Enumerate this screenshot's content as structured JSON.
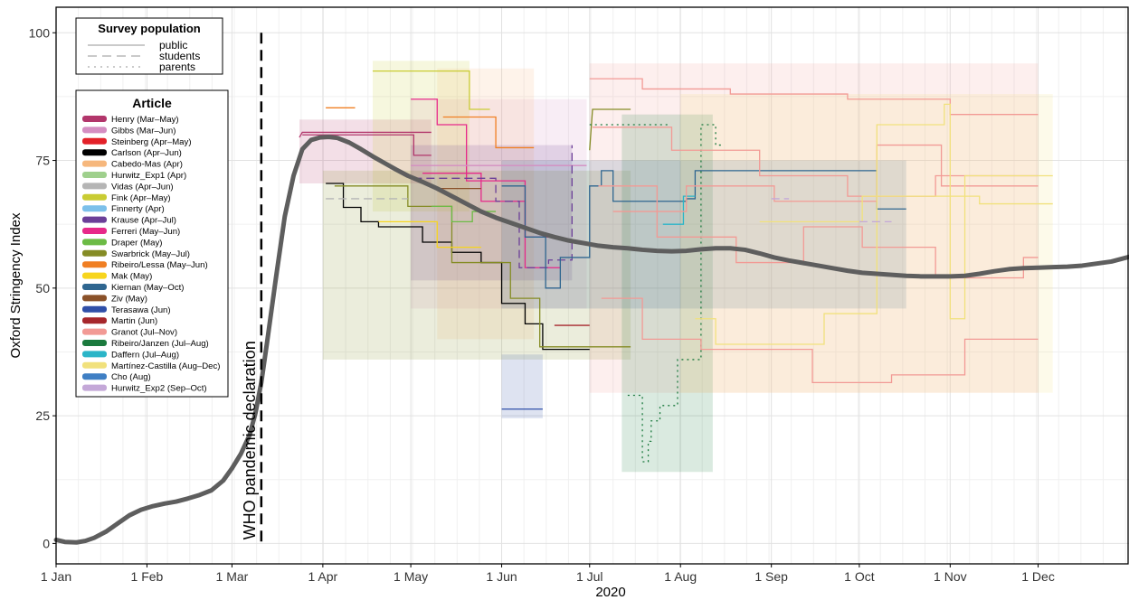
{
  "chart_data": {
    "type": "line",
    "ylabel": "Oxford Stringency Index",
    "xlabel": "2020",
    "ylim": [
      -4,
      105
    ],
    "xlim_days": [
      0,
      366
    ],
    "y_ticks": [
      0,
      25,
      50,
      75,
      100
    ],
    "x_ticks": [
      {
        "day": 0,
        "label": "1 Jan"
      },
      {
        "day": 31,
        "label": "1 Feb"
      },
      {
        "day": 60,
        "label": "1 Mar"
      },
      {
        "day": 91,
        "label": "1 Apr"
      },
      {
        "day": 121,
        "label": "1 May"
      },
      {
        "day": 152,
        "label": "1 Jun"
      },
      {
        "day": 182,
        "label": "1 Jul"
      },
      {
        "day": 213,
        "label": "1 Aug"
      },
      {
        "day": 244,
        "label": "1 Sep"
      },
      {
        "day": 274,
        "label": "1 Oct"
      },
      {
        "day": 305,
        "label": "1 Nov"
      },
      {
        "day": 335,
        "label": "1 Dec"
      }
    ],
    "grid": true,
    "annotation": {
      "text": "WHO pandemic declaration",
      "day": 70
    },
    "survey_legend": {
      "title": "Survey population",
      "items": [
        {
          "label": "public",
          "dash": "solid"
        },
        {
          "label": "students",
          "dash": "dashed"
        },
        {
          "label": "parents",
          "dash": "dotted"
        }
      ]
    },
    "article_legend": {
      "title": "Article",
      "items": [
        {
          "label": "Henry (Mar–May)",
          "color": "#b2366b"
        },
        {
          "label": "Gibbs (Mar–Jun)",
          "color": "#d58ec2"
        },
        {
          "label": "Steinberg (Apr–May)",
          "color": "#e32129"
        },
        {
          "label": "Carlson (Apr–Jun)",
          "color": "#000000"
        },
        {
          "label": "Cabedo-Mas (Apr)",
          "color": "#f6b77c"
        },
        {
          "label": "Hurwitz_Exp1 (Apr)",
          "color": "#9fd08d"
        },
        {
          "label": "Vidas (Apr–Jun)",
          "color": "#b5b5b5"
        },
        {
          "label": "Fink (Apr–May)",
          "color": "#c9cc33"
        },
        {
          "label": "Finnerty (Apr)",
          "color": "#7cc0ea"
        },
        {
          "label": "Krause (Apr–Jul)",
          "color": "#6b3f98"
        },
        {
          "label": "Ferreri (May–Jun)",
          "color": "#e7298a"
        },
        {
          "label": "Draper (May)",
          "color": "#6cbb45"
        },
        {
          "label": "Swarbrick (May–Jul)",
          "color": "#858c25"
        },
        {
          "label": "Ribeiro/Lessa (May–Jun)",
          "color": "#f07f23"
        },
        {
          "label": "Mak (May)",
          "color": "#f7d51d"
        },
        {
          "label": "Kiernan (May–Oct)",
          "color": "#2f6690"
        },
        {
          "label": "Ziv (May)",
          "color": "#8a5129"
        },
        {
          "label": "Terasawa (Jun)",
          "color": "#2f4fa8"
        },
        {
          "label": "Martin (Jun)",
          "color": "#a6272c"
        },
        {
          "label": "Granot (Jul–Nov)",
          "color": "#f29a95"
        },
        {
          "label": "Ribeiro/Janzen (Jul–Aug)",
          "color": "#1b7a3e"
        },
        {
          "label": "Daffern (Jul–Aug)",
          "color": "#2bb5c8"
        },
        {
          "label": "Martínez-Castilla (Aug–Dec)",
          "color": "#f1e17c"
        },
        {
          "label": "Cho (Aug)",
          "color": "#3f7fc4"
        },
        {
          "label": "Hurwitz_Exp2 (Sep–Oct)",
          "color": "#c4a8d8"
        }
      ]
    },
    "series": [
      {
        "name": "Oxford Stringency Index",
        "color": "#5e5e5e",
        "x": [
          0,
          3,
          7,
          10,
          13,
          17,
          21,
          25,
          29,
          33,
          37,
          41,
          45,
          49,
          53,
          57,
          60,
          63,
          66,
          68,
          70,
          72,
          75,
          78,
          81,
          84,
          87,
          90,
          93,
          96,
          100,
          104,
          108,
          112,
          116,
          120,
          125,
          130,
          135,
          140,
          145,
          150,
          155,
          160,
          165,
          170,
          175,
          180,
          185,
          190,
          195,
          200,
          205,
          210,
          215,
          220,
          225,
          230,
          235,
          240,
          245,
          250,
          255,
          260,
          265,
          270,
          275,
          280,
          285,
          290,
          295,
          300,
          305,
          310,
          315,
          320,
          325,
          330,
          335,
          340,
          345,
          350,
          355,
          360,
          366
        ],
        "y": [
          0.7,
          0.3,
          0.2,
          0.5,
          1.1,
          2.3,
          3.9,
          5.5,
          6.6,
          7.3,
          7.8,
          8.2,
          8.8,
          9.5,
          10.4,
          12.3,
          14.7,
          17.5,
          21.2,
          25.5,
          31.5,
          39.5,
          52,
          64,
          72,
          77.2,
          79,
          79.5,
          79.6,
          79.4,
          78.5,
          77.2,
          75.8,
          74.5,
          73.2,
          72,
          70.8,
          69.5,
          68,
          66.5,
          65,
          63.8,
          62.8,
          61.8,
          60.8,
          60,
          59.3,
          58.8,
          58.3,
          58,
          57.8,
          57.5,
          57.3,
          57.2,
          57.3,
          57.6,
          57.8,
          57.8,
          57.5,
          56.8,
          56,
          55.4,
          54.9,
          54.4,
          53.9,
          53.4,
          53,
          52.8,
          52.6,
          52.4,
          52.3,
          52.3,
          52.3,
          52.4,
          52.8,
          53.3,
          53.7,
          53.9,
          54.0,
          54.1,
          54.2,
          54.4,
          54.8,
          55.2,
          56.1
        ]
      }
    ],
    "article_ranges": [
      {
        "color": "#b2366b",
        "x0": 83,
        "x1": 128,
        "y0": 70.5,
        "y1": 83
      },
      {
        "color": "#d58ec2",
        "x0": 121,
        "x1": 181,
        "y0": 46,
        "y1": 87
      },
      {
        "color": "#f6b77c",
        "x0": 130,
        "x1": 163,
        "y0": 40,
        "y1": 93
      },
      {
        "color": "#c9cc33",
        "x0": 108,
        "x1": 141,
        "y0": 65,
        "y1": 94.5
      },
      {
        "color": "#6b3f98",
        "x0": 121,
        "x1": 176,
        "y0": 51.5,
        "y1": 78
      },
      {
        "color": "#858c25",
        "x0": 91,
        "x1": 196,
        "y0": 36,
        "y1": 73
      },
      {
        "color": "#2f4fa8",
        "x0": 152,
        "x1": 166,
        "y0": 24.5,
        "y1": 37
      },
      {
        "color": "#f29a95",
        "x0": 182,
        "x1": 335,
        "y0": 29.5,
        "y1": 94
      },
      {
        "color": "#1b7a3e",
        "x0": 193,
        "x1": 224,
        "y0": 14,
        "y1": 84
      },
      {
        "color": "#2f6690",
        "x0": 152,
        "x1": 290,
        "y0": 46,
        "y1": 75
      },
      {
        "color": "#f1e17c",
        "x0": 213,
        "x1": 340,
        "y0": 29.5,
        "y1": 88
      }
    ],
    "article_lines": [
      {
        "color": "#b2366b",
        "dash": "solid",
        "x": [
          83,
          84,
          128
        ],
        "y": [
          79.5,
          80.5,
          80.5
        ]
      },
      {
        "color": "#b2366b",
        "dash": "solid",
        "x": [
          84,
          122,
          122,
          128
        ],
        "y": [
          80,
          80,
          76,
          76
        ]
      },
      {
        "color": "#000000",
        "dash": "solid",
        "x": [
          92,
          98,
          98,
          104,
          104,
          110,
          110,
          125,
          125,
          135,
          135,
          145,
          145,
          152,
          152,
          160,
          160,
          166,
          166,
          182
        ],
        "y": [
          70.5,
          70.5,
          65.8,
          65.8,
          63,
          63,
          62,
          62,
          59,
          59,
          57,
          57,
          55,
          55,
          47,
          47,
          43,
          43,
          38,
          38
        ]
      },
      {
        "color": "#858c25",
        "dash": "solid",
        "x": [
          95,
          120,
          120,
          135,
          135,
          155,
          155,
          165,
          165,
          182,
          182,
          196
        ],
        "y": [
          70,
          70,
          66,
          66,
          55,
          55,
          48,
          48,
          38.5,
          38.5,
          38.5,
          38.5
        ]
      },
      {
        "color": "#858c25",
        "dash": "solid",
        "x": [
          182,
          183,
          196
        ],
        "y": [
          77,
          85,
          85
        ]
      },
      {
        "color": "#c9cc33",
        "dash": "solid",
        "x": [
          108,
          141,
          141,
          148
        ],
        "y": [
          92.5,
          92.5,
          85,
          85
        ]
      },
      {
        "color": "#f07f23",
        "dash": "solid",
        "x": [
          92,
          102
        ],
        "y": [
          85.3,
          85.3
        ]
      },
      {
        "color": "#f07f23",
        "dash": "solid",
        "x": [
          132,
          150,
          150,
          163
        ],
        "y": [
          83.5,
          83.5,
          77.5,
          77.5
        ]
      },
      {
        "color": "#e7298a",
        "dash": "solid",
        "x": [
          121,
          130,
          130,
          140,
          140,
          160,
          160,
          168
        ],
        "y": [
          87,
          87,
          82,
          82,
          71,
          71,
          60,
          60
        ]
      },
      {
        "color": "#e7298a",
        "dash": "solid",
        "x": [
          125,
          145,
          145,
          160,
          160,
          172
        ],
        "y": [
          72.5,
          72.5,
          67,
          67,
          54,
          54
        ]
      },
      {
        "color": "#d58ec2",
        "dash": "solid",
        "x": [
          121,
          181
        ],
        "y": [
          74,
          74
        ]
      },
      {
        "color": "#6cbb45",
        "dash": "solid",
        "x": [
          128,
          135,
          135,
          142,
          142,
          150
        ],
        "y": [
          66,
          66,
          63,
          63,
          65,
          65
        ]
      },
      {
        "color": "#f7d51d",
        "dash": "solid",
        "x": [
          110,
          130,
          130,
          145
        ],
        "y": [
          63,
          63,
          58,
          58
        ]
      },
      {
        "color": "#6b3f98",
        "dash": "dashed",
        "x": [
          122,
          150,
          150,
          158,
          158,
          168,
          168,
          176,
          176
        ],
        "y": [
          71.5,
          71.5,
          67,
          67,
          54,
          54,
          55.5,
          55.5,
          78
        ]
      },
      {
        "color": "#2f6690",
        "dash": "solid",
        "x": [
          152,
          160,
          160,
          167,
          167,
          172,
          172,
          182,
          182,
          186,
          186,
          190,
          190,
          215,
          215,
          218,
          218,
          230,
          230,
          280,
          280,
          290
        ],
        "y": [
          70,
          70,
          60,
          60,
          50,
          50,
          56,
          56,
          70,
          70,
          73,
          73,
          67,
          67,
          67.5,
          67.5,
          73,
          73,
          73,
          73,
          65.5,
          65.5
        ]
      },
      {
        "color": "#2f4fa8",
        "dash": "solid",
        "x": [
          152,
          166
        ],
        "y": [
          26.3,
          26.3
        ]
      },
      {
        "color": "#a6272c",
        "dash": "solid",
        "x": [
          170,
          182
        ],
        "y": [
          42.7,
          42.7
        ]
      },
      {
        "color": "#2bb5c8",
        "dash": "solid",
        "x": [
          207,
          214,
          214,
          218
        ],
        "y": [
          62.5,
          62.5,
          68,
          68
        ]
      },
      {
        "color": "#1b7a3e",
        "dash": "dotted",
        "x": [
          195,
          200,
          200,
          202,
          202,
          203,
          203,
          206,
          206,
          212,
          212,
          220,
          220,
          225,
          225,
          228
        ],
        "y": [
          29,
          29,
          16,
          16,
          20,
          20,
          24,
          24,
          27,
          27,
          36,
          36,
          82,
          82,
          78,
          78
        ]
      },
      {
        "color": "#1b7a3e",
        "dash": "dotted",
        "x": [
          182,
          206,
          206,
          209
        ],
        "y": [
          82,
          82,
          82,
          82
        ]
      },
      {
        "color": "#f29a95",
        "dash": "solid",
        "x": [
          182,
          200,
          200,
          230,
          230,
          270,
          270,
          305,
          305,
          335
        ],
        "y": [
          91,
          91,
          89,
          89,
          88,
          88,
          87,
          87,
          84,
          84
        ]
      },
      {
        "color": "#f29a95",
        "dash": "solid",
        "x": [
          183,
          210,
          210,
          240,
          240,
          270,
          270,
          300,
          300,
          335
        ],
        "y": [
          81.5,
          81.5,
          77,
          77,
          72,
          72,
          68,
          68,
          72,
          72
        ]
      },
      {
        "color": "#f29a95",
        "dash": "solid",
        "x": [
          185,
          205,
          205,
          232,
          232,
          255,
          255,
          275,
          275,
          300,
          300,
          330,
          330,
          335
        ],
        "y": [
          70,
          70,
          60,
          60,
          55,
          55,
          62,
          62,
          58,
          58,
          52,
          52,
          56,
          56
        ]
      },
      {
        "color": "#f29a95",
        "dash": "solid",
        "x": [
          186,
          200,
          200,
          220,
          220,
          258,
          258,
          285,
          285,
          310,
          310,
          335
        ],
        "y": [
          48,
          48,
          40,
          40,
          38,
          38,
          31.5,
          31.5,
          33,
          33,
          40,
          40
        ]
      },
      {
        "color": "#f29a95",
        "dash": "solid",
        "x": [
          190,
          215,
          215,
          245,
          245,
          280,
          280,
          302,
          302,
          335
        ],
        "y": [
          65,
          65,
          70,
          70,
          67,
          67,
          78,
          78,
          70,
          70
        ]
      },
      {
        "color": "#f1e17c",
        "dash": "solid",
        "x": [
          218,
          225,
          225,
          262,
          262,
          280,
          280,
          303,
          303,
          305,
          305,
          310,
          310,
          340
        ],
        "y": [
          44,
          44,
          39,
          39,
          45,
          45,
          82,
          82,
          86,
          86,
          44,
          44,
          72,
          72
        ]
      },
      {
        "color": "#f1e17c",
        "dash": "solid",
        "x": [
          240,
          275,
          275,
          315,
          315,
          340
        ],
        "y": [
          63,
          63,
          68,
          68,
          66.5,
          66.5
        ]
      },
      {
        "color": "#c4a8d8",
        "dash": "dashed",
        "x": [
          244,
          250
        ],
        "y": [
          67.5,
          67.5
        ]
      },
      {
        "color": "#c4a8d8",
        "dash": "dashed",
        "x": [
          274,
          285
        ],
        "y": [
          63,
          63
        ]
      },
      {
        "color": "#b5b5b5",
        "dash": "dashed",
        "x": [
          92,
          120
        ],
        "y": [
          67.5,
          67.5
        ]
      },
      {
        "color": "#8a5129",
        "dash": "solid",
        "x": [
          130,
          145
        ],
        "y": [
          69.5,
          69.5
        ]
      }
    ]
  }
}
